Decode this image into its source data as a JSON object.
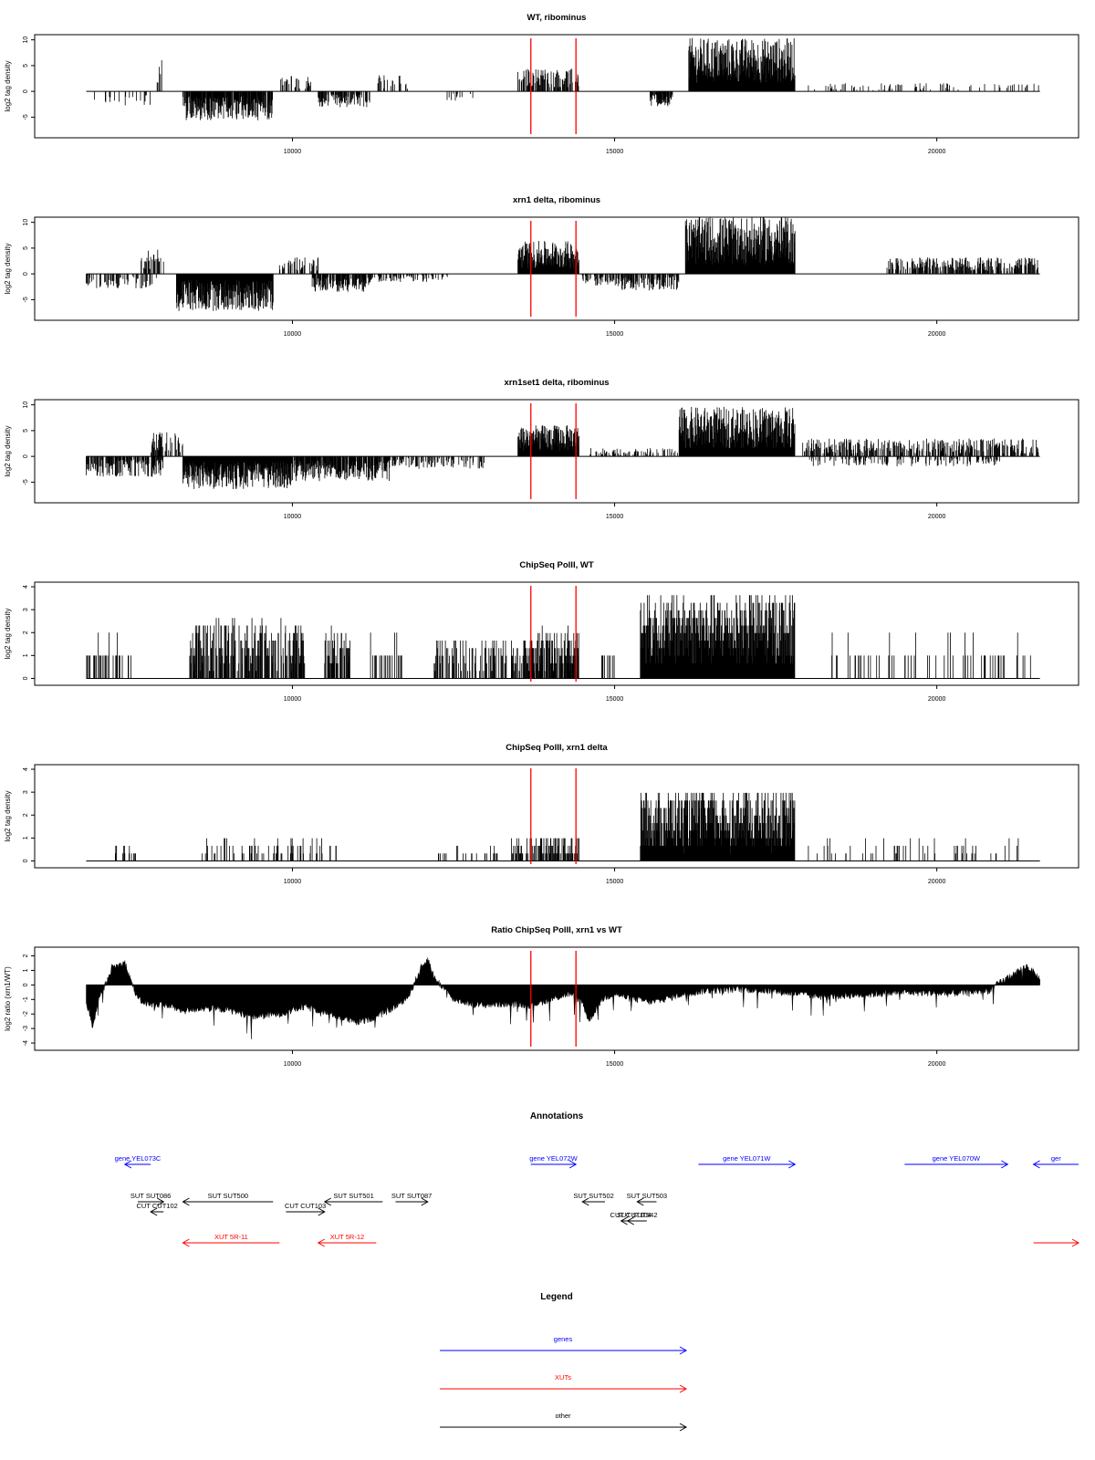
{
  "chart_data": [
    {
      "type": "bar",
      "title": "WT, ribominus",
      "xlabel": "",
      "ylabel": "log2 tag density",
      "xlim": [
        6000,
        22200
      ],
      "ylim": [
        -9,
        11
      ],
      "xticks": [
        10000,
        15000,
        20000
      ],
      "yticks": [
        -5,
        0,
        5,
        10
      ],
      "markers": [
        13700,
        14400
      ],
      "series": [
        {
          "segments": [
            {
              "start": 6800,
              "end": 7900,
              "sign": -1,
              "lvl": 1.8,
              "dens": 0.15
            },
            {
              "start": 7900,
              "end": 8000,
              "sign": 1,
              "lvl": 4,
              "dens": 0.4
            },
            {
              "start": 8300,
              "end": 9700,
              "sign": -1,
              "lvl": 3.5,
              "dens": 0.9
            },
            {
              "start": 9800,
              "end": 10300,
              "sign": 1,
              "lvl": 2,
              "dens": 0.35
            },
            {
              "start": 10400,
              "end": 11200,
              "sign": -1,
              "lvl": 2,
              "dens": 0.6
            },
            {
              "start": 11300,
              "end": 11800,
              "sign": 1,
              "lvl": 2,
              "dens": 0.3
            },
            {
              "start": 12400,
              "end": 12800,
              "sign": -1,
              "lvl": 1.2,
              "dens": 0.2
            },
            {
              "start": 13500,
              "end": 14450,
              "sign": 1,
              "lvl": 2.8,
              "dens": 0.55
            },
            {
              "start": 15550,
              "end": 15900,
              "sign": -1,
              "lvl": 1.8,
              "dens": 0.8
            },
            {
              "start": 16150,
              "end": 17800,
              "sign": 1,
              "lvl": 6.5,
              "dens": 1.0
            },
            {
              "start": 18000,
              "end": 21600,
              "sign": 1,
              "lvl": 1,
              "dens": 0.12
            }
          ]
        }
      ]
    },
    {
      "type": "bar",
      "title": "xrn1 delta, ribominus",
      "xlabel": "",
      "ylabel": "log2 tag density",
      "xlim": [
        6000,
        22200
      ],
      "ylim": [
        -9,
        11
      ],
      "xticks": [
        10000,
        15000,
        20000
      ],
      "yticks": [
        -5,
        0,
        5,
        10
      ],
      "markers": [
        13700,
        14400
      ],
      "series": [
        {
          "segments": [
            {
              "start": 6800,
              "end": 7900,
              "sign": -1,
              "lvl": 1.8,
              "dens": 0.35
            },
            {
              "start": 7600,
              "end": 8000,
              "sign": 1,
              "lvl": 3,
              "dens": 0.3
            },
            {
              "start": 8200,
              "end": 9700,
              "sign": -1,
              "lvl": 4.5,
              "dens": 1.0
            },
            {
              "start": 9800,
              "end": 10400,
              "sign": 1,
              "lvl": 2,
              "dens": 0.4
            },
            {
              "start": 10300,
              "end": 11200,
              "sign": -1,
              "lvl": 2.2,
              "dens": 0.8
            },
            {
              "start": 11200,
              "end": 12500,
              "sign": -1,
              "lvl": 1,
              "dens": 0.3
            },
            {
              "start": 13500,
              "end": 14450,
              "sign": 1,
              "lvl": 4,
              "dens": 1.0
            },
            {
              "start": 14500,
              "end": 15100,
              "sign": -1,
              "lvl": 1.5,
              "dens": 0.4
            },
            {
              "start": 15100,
              "end": 16000,
              "sign": -1,
              "lvl": 2,
              "dens": 0.6
            },
            {
              "start": 16100,
              "end": 17800,
              "sign": 1,
              "lvl": 7,
              "dens": 1.0
            },
            {
              "start": 19200,
              "end": 21600,
              "sign": 1,
              "lvl": 2,
              "dens": 0.5
            }
          ]
        }
      ]
    },
    {
      "type": "bar",
      "title": "xrn1set1 delta, ribominus",
      "xlabel": "",
      "ylabel": "log2 tag density",
      "xlim": [
        6000,
        22200
      ],
      "ylim": [
        -9,
        11
      ],
      "xticks": [
        10000,
        15000,
        20000
      ],
      "yticks": [
        -5,
        0,
        5,
        10
      ],
      "markers": [
        13700,
        14400
      ],
      "series": [
        {
          "segments": [
            {
              "start": 6800,
              "end": 8000,
              "sign": -1,
              "lvl": 2.5,
              "dens": 0.7
            },
            {
              "start": 7800,
              "end": 8300,
              "sign": 1,
              "lvl": 3,
              "dens": 0.5
            },
            {
              "start": 8300,
              "end": 10000,
              "sign": -1,
              "lvl": 4,
              "dens": 1.0
            },
            {
              "start": 10000,
              "end": 11500,
              "sign": -1,
              "lvl": 3,
              "dens": 0.8
            },
            {
              "start": 11500,
              "end": 13000,
              "sign": -1,
              "lvl": 1.5,
              "dens": 0.4
            },
            {
              "start": 13500,
              "end": 14450,
              "sign": 1,
              "lvl": 3.8,
              "dens": 1.0
            },
            {
              "start": 14600,
              "end": 16000,
              "sign": 1,
              "lvl": 1,
              "dens": 0.3
            },
            {
              "start": 16000,
              "end": 17800,
              "sign": 1,
              "lvl": 6,
              "dens": 1.0
            },
            {
              "start": 17900,
              "end": 21600,
              "sign": 1,
              "lvl": 2.2,
              "dens": 0.5
            },
            {
              "start": 18000,
              "end": 21000,
              "sign": -1,
              "lvl": 1.2,
              "dens": 0.25
            }
          ]
        }
      ]
    },
    {
      "type": "bar",
      "title": "ChipSeq PolII, WT",
      "xlabel": "",
      "ylabel": "log2 tag density",
      "xlim": [
        6000,
        22200
      ],
      "ylim": [
        -0.3,
        4.2
      ],
      "xticks": [
        10000,
        15000,
        20000
      ],
      "yticks": [
        0,
        1,
        2,
        3,
        4
      ],
      "markers": [
        13700,
        14400
      ],
      "series": [
        {
          "segments": [
            {
              "start": 6800,
              "end": 7500,
              "sign": 1,
              "lvl": 1,
              "dens": 0.25,
              "step": 1
            },
            {
              "start": 8400,
              "end": 10200,
              "sign": 1,
              "lvl": 1.6,
              "dens": 0.6,
              "step": 0.33
            },
            {
              "start": 10500,
              "end": 10900,
              "sign": 1,
              "lvl": 1.4,
              "dens": 0.6,
              "step": 0.33
            },
            {
              "start": 11200,
              "end": 11800,
              "sign": 1,
              "lvl": 1,
              "dens": 0.2,
              "step": 1
            },
            {
              "start": 12200,
              "end": 13600,
              "sign": 1,
              "lvl": 1.1,
              "dens": 0.35,
              "step": 0.33
            },
            {
              "start": 13600,
              "end": 14450,
              "sign": 1,
              "lvl": 1.4,
              "dens": 0.8,
              "step": 0.33
            },
            {
              "start": 14800,
              "end": 15000,
              "sign": 1,
              "lvl": 1,
              "dens": 0.3,
              "step": 1
            },
            {
              "start": 15400,
              "end": 17800,
              "sign": 1,
              "lvl": 2.3,
              "dens": 1.0,
              "step": 0.33
            },
            {
              "start": 18300,
              "end": 21600,
              "sign": 1,
              "lvl": 1,
              "dens": 0.12,
              "step": 1
            }
          ]
        }
      ]
    },
    {
      "type": "bar",
      "title": "ChipSeq PolII, xrn1 delta",
      "xlabel": "",
      "ylabel": "log2 tag density",
      "xlim": [
        6000,
        22200
      ],
      "ylim": [
        -0.3,
        4.2
      ],
      "xticks": [
        10000,
        15000,
        20000
      ],
      "yticks": [
        0,
        1,
        2,
        3,
        4
      ],
      "markers": [
        13700,
        14400
      ],
      "series": [
        {
          "segments": [
            {
              "start": 7200,
              "end": 7600,
              "sign": 1,
              "lvl": 0.5,
              "dens": 0.25,
              "step": 0.33
            },
            {
              "start": 8600,
              "end": 10700,
              "sign": 1,
              "lvl": 0.6,
              "dens": 0.2,
              "step": 0.33
            },
            {
              "start": 12200,
              "end": 13400,
              "sign": 1,
              "lvl": 0.4,
              "dens": 0.1,
              "step": 0.33
            },
            {
              "start": 13400,
              "end": 14450,
              "sign": 1,
              "lvl": 0.7,
              "dens": 0.55,
              "step": 0.33
            },
            {
              "start": 15400,
              "end": 17800,
              "sign": 1,
              "lvl": 1.9,
              "dens": 1.0,
              "step": 0.33
            },
            {
              "start": 18000,
              "end": 21300,
              "sign": 1,
              "lvl": 0.6,
              "dens": 0.12,
              "step": 0.33
            }
          ]
        }
      ]
    },
    {
      "type": "area",
      "title": "Ratio ChipSeq PolII, xrn1 vs WT",
      "xlabel": "",
      "ylabel": "log2 ratio (xrn1/WT)",
      "xlim": [
        6000,
        22200
      ],
      "ylim": [
        -4.5,
        2.6
      ],
      "xticks": [
        10000,
        15000,
        20000
      ],
      "yticks": [
        -4,
        -3,
        -2,
        -1,
        0,
        1,
        2
      ],
      "markers": [
        13700,
        14400
      ],
      "series": [
        {
          "x": [
            6800,
            6900,
            7000,
            7200,
            7400,
            7600,
            7800,
            8000,
            8300,
            8600,
            9000,
            9400,
            9800,
            10200,
            10600,
            11000,
            11300,
            11600,
            11800,
            12000,
            12100,
            12200,
            12500,
            12900,
            13300,
            13700,
            14000,
            14300,
            14500,
            14600,
            14800,
            15000,
            15200,
            15600,
            16000,
            16400,
            17000,
            17600,
            18200,
            18800,
            19500,
            20200,
            20800,
            21200,
            21400,
            21600
          ],
          "values": [
            -1.2,
            -2.8,
            -1.0,
            1.2,
            1.5,
            -1.0,
            -1.4,
            -1.3,
            -1.8,
            -1.6,
            -1.7,
            -2.2,
            -2.0,
            -1.5,
            -2.0,
            -2.6,
            -2.2,
            -1.5,
            -0.8,
            1.2,
            1.8,
            0.5,
            -1.0,
            -1.4,
            -1.3,
            -1.4,
            -1.0,
            -0.6,
            -1.2,
            -2.5,
            -1.0,
            -0.6,
            -0.9,
            -1.2,
            -0.7,
            -0.4,
            -0.3,
            -0.5,
            -0.8,
            -0.7,
            -0.5,
            -0.6,
            -0.4,
            0.8,
            1.3,
            0.4
          ]
        }
      ]
    }
  ],
  "annotations": {
    "title": "Annotations",
    "genes": [
      {
        "label": "gene YEL073C",
        "x1": 7800,
        "x2": 7400
      },
      {
        "label": "gene YEL072W",
        "x1": 13700,
        "x2": 14400
      },
      {
        "label": "gene YEL071W",
        "x1": 16300,
        "x2": 17800
      },
      {
        "label": "gene YEL070W",
        "x1": 19500,
        "x2": 21100
      },
      {
        "label": "ger",
        "x1": 22200,
        "x2": 21500
      }
    ],
    "others": [
      {
        "label": "SUT SUT086",
        "x1": 7600,
        "x2": 8000,
        "row": 0
      },
      {
        "label": "SUT SUT500",
        "x1": 9700,
        "x2": 8300,
        "row": 0
      },
      {
        "label": "SUT SUT501",
        "x1": 11400,
        "x2": 10500,
        "row": 0
      },
      {
        "label": "SUT SUT087",
        "x1": 11600,
        "x2": 12100,
        "row": 0
      },
      {
        "label": "CUT CUT102",
        "x1": 8000,
        "x2": 7800,
        "row": 1
      },
      {
        "label": "CUT CUT103",
        "x1": 9900,
        "x2": 10500,
        "row": 1
      },
      {
        "label": "SUT SUT502",
        "x1": 14850,
        "x2": 14500,
        "row": 0
      },
      {
        "label": "SUT SUT503",
        "x1": 15650,
        "x2": 15350,
        "row": 0
      },
      {
        "label": "CUT CUT104",
        "x1": 15400,
        "x2": 15100,
        "row": 2
      },
      {
        "label": "SUT SUT542",
        "x1": 15500,
        "x2": 15200,
        "row": 2
      }
    ],
    "xuts": [
      {
        "label": "XUT 5R-11",
        "x1": 9800,
        "x2": 8300
      },
      {
        "label": "XUT 5R-12",
        "x1": 11300,
        "x2": 10400
      },
      {
        "label": "",
        "x1": 21500,
        "x2": 22200
      }
    ]
  },
  "legend": {
    "title": "Legend",
    "items": [
      {
        "label": "genes",
        "color": "#0000ff"
      },
      {
        "label": "XUTs",
        "color": "#ff0000"
      },
      {
        "label": "other",
        "color": "#000000"
      }
    ]
  },
  "colors": {
    "marker": "#ff0000",
    "bars": "#000000",
    "genes": "#0000ff",
    "xuts": "#ff0000",
    "other": "#000000"
  }
}
